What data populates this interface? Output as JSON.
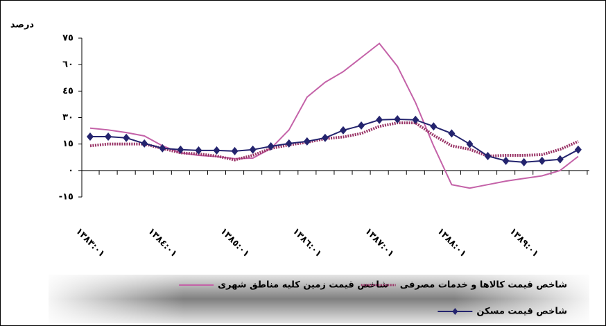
{
  "chart_data": {
    "type": "line",
    "y_label": "درصد",
    "categories": [
      "١٣٨٣:٠١",
      null,
      null,
      null,
      "١٣٨٤:٠١",
      null,
      null,
      null,
      "١٣٨٥:٠١",
      null,
      null,
      null,
      "١٣٨٦:٠١",
      null,
      null,
      null,
      "١٣٨٧:٠١",
      null,
      null,
      null,
      "١٣٨٨:٠١",
      null,
      null,
      null,
      "١٣٨٩:٠١",
      null,
      null,
      null
    ],
    "ylim": [
      -15,
      75
    ],
    "yticks": [
      {
        "value": -15,
        "label": "-١٥"
      },
      {
        "value": 0,
        "label": "٠"
      },
      {
        "value": 15,
        "label": "١٥"
      },
      {
        "value": 30,
        "label": "٣٠"
      },
      {
        "value": 45,
        "label": "٤٥"
      },
      {
        "value": 60,
        "label": "٦٠"
      },
      {
        "value": 75,
        "label": "٧٥"
      }
    ],
    "grid": false,
    "series": [
      {
        "name": "شاخص قیمت زمین کلیه مناطق شهری",
        "color": "#c462a8",
        "style": "solid",
        "marker": "none",
        "values": [
          24,
          23,
          21.5,
          19.6,
          14,
          10,
          8.6,
          7.9,
          6.7,
          7,
          12.5,
          23,
          41.6,
          50,
          56,
          64,
          72,
          59,
          38.5,
          14,
          -8,
          -10,
          -8,
          -6,
          -4.5,
          -3,
          0,
          8
        ]
      },
      {
        "name": "شاخص قیمت کالاها و خدمات مصرفی",
        "color": "#993366",
        "style": "dotted",
        "marker": "none",
        "values": [
          14,
          15,
          15,
          15,
          12.5,
          10,
          9.4,
          8.2,
          6,
          8.6,
          12.5,
          14.5,
          16,
          18,
          19,
          21,
          25,
          27,
          27,
          20,
          14,
          12,
          8.2,
          8.6,
          8.6,
          9,
          12,
          16.5
        ]
      },
      {
        "name": "شاخص قیمت مسکن",
        "color": "#24246e",
        "style": "solid",
        "marker": "diamond",
        "values": [
          19.2,
          19.2,
          18.5,
          15.3,
          12.6,
          11.8,
          11.4,
          11.4,
          11,
          11.8,
          13.7,
          15.3,
          16.5,
          18.5,
          22.8,
          25.5,
          28.7,
          29,
          28.7,
          25,
          21,
          15,
          8.2,
          5.5,
          4.7,
          5.5,
          6.3,
          11.8
        ]
      }
    ]
  }
}
